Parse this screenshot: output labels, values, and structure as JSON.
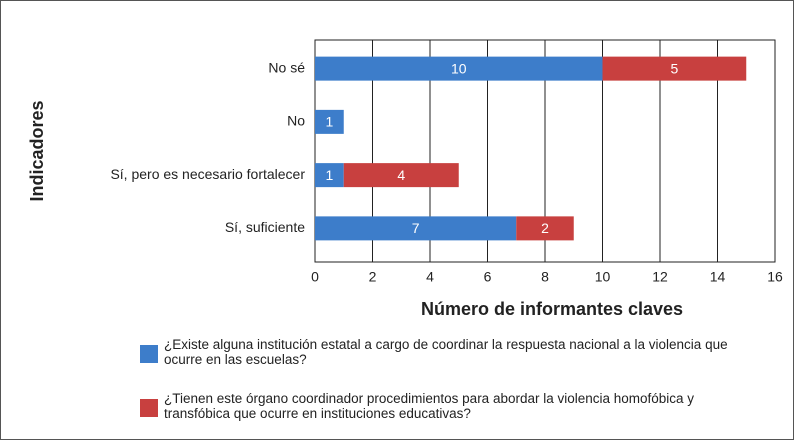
{
  "chart_data": {
    "type": "stacked_barh",
    "ylabel": "Indicadores",
    "xlabel": "Número de informantes claves",
    "categories": [
      "No sé",
      "No",
      "Sí, pero es necesario fortalecer",
      "Sí, suficiente"
    ],
    "series": [
      {
        "name": "¿Existe alguna institución estatal a cargo de coordinar la respuesta nacional a la violencia que ocurre en las escuelas?",
        "color": "#3d7dca",
        "values": [
          10,
          1,
          1,
          7
        ]
      },
      {
        "name": "¿Tienen este órgano coordinador procedimientos para abordar la violencia homofóbica y transfóbica que ocurre en instituciones educativas?",
        "color": "#c8403f",
        "values": [
          5,
          null,
          4,
          2
        ]
      }
    ],
    "xlim": [
      0,
      16
    ],
    "xticks": [
      0,
      2,
      4,
      6,
      8,
      10,
      12,
      14,
      16
    ],
    "grid": true,
    "legend": "bottom"
  }
}
